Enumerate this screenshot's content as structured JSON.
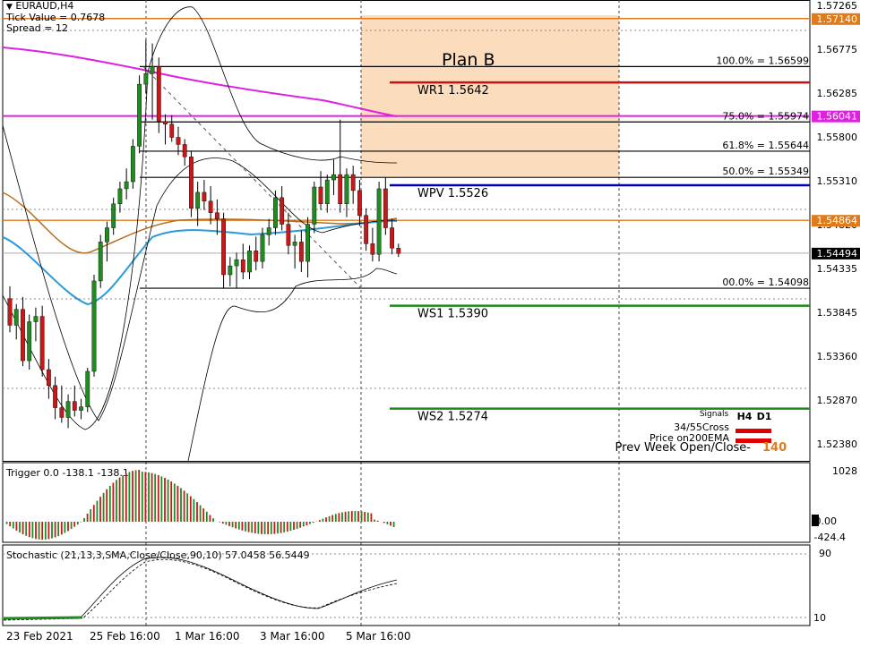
{
  "header": {
    "symbol": "EURAUD,H4",
    "tick_value": "Tick Value = 0.7678",
    "spread": "Spread = 12"
  },
  "colors": {
    "bull": "#1e8c1e",
    "bear": "#c81818",
    "level_orange": "#e07a1a",
    "ma_magenta": "#e020e0",
    "ma_blue": "#2a9ad8",
    "ma_brown": "#b86d20",
    "resistance": "#cc1010",
    "pivot": "#0000b0",
    "support": "#1a8a1a",
    "zone": "#fbdcbc"
  },
  "price_axis": {
    "min": 1.5215,
    "max": 1.5735,
    "ticks": [
      "1.57265",
      "1.56775",
      "1.56285",
      "1.55800",
      "1.55310",
      "1.54820",
      "1.54335",
      "1.53845",
      "1.53360",
      "1.52870",
      "1.52380"
    ],
    "tags": [
      {
        "price": 1.5714,
        "label": "1.57140",
        "color": "#e07a1a"
      },
      {
        "price": 1.56041,
        "label": "1.56041",
        "color": "#e020e0"
      },
      {
        "price": 1.54864,
        "label": "1.54864",
        "color": "#e07a1a"
      },
      {
        "price": 1.54494,
        "label": "1.54494",
        "color": "#000000"
      }
    ]
  },
  "time_axis": [
    "23 Feb 2021",
    "25 Feb 16:00",
    "1 Mar 16:00",
    "3 Mar 16:00",
    "5 Mar 16:00"
  ],
  "zone_label": "Plan B",
  "fib_levels": [
    {
      "label": "100.0% = 1.56599",
      "price": 1.56599
    },
    {
      "label": "75.0% = 1.55974",
      "price": 1.55974
    },
    {
      "label": "61.8% = 1.55644",
      "price": 1.55644
    },
    {
      "label": "50.0% = 1.55349",
      "price": 1.55349
    },
    {
      "label": "00.0% = 1.54098",
      "price": 1.54098
    }
  ],
  "pivot_levels": [
    {
      "name": "WR1",
      "value": "1.5642",
      "type": "resistance",
      "price": 1.5642
    },
    {
      "name": "WPV",
      "value": "1.5526",
      "type": "pivot",
      "price": 1.5526
    },
    {
      "name": "WS1",
      "value": "1.5390",
      "type": "support",
      "price": 1.539
    },
    {
      "name": "WS2",
      "value": "1.5274",
      "type": "support",
      "price": 1.5274
    }
  ],
  "signals": {
    "title": "Signals",
    "timeframes": [
      "H4",
      "D1"
    ],
    "rows": [
      "34/55Cross",
      "Price on200EMA"
    ],
    "prev_week_label": "Prev Week Open/Close-",
    "prev_week_value": "-140"
  },
  "trigger": {
    "label": "Trigger 0.0 -138.1 -138.1",
    "ticks": [
      "1028",
      "0.00",
      "-424.4"
    ]
  },
  "stochastic": {
    "label": "Stochastic (21,13,3,SMA,Close/Close,90,10) 57.0458 56.5449",
    "ticks": [
      "90",
      "10"
    ]
  },
  "chart_data": {
    "type": "candlestick",
    "symbol": "EURAUD",
    "timeframe": "H4",
    "ylim": [
      1.5215,
      1.5735
    ],
    "candles": [
      {
        "o": 1.5398,
        "h": 1.5412,
        "l": 1.536,
        "c": 1.5368
      },
      {
        "o": 1.5368,
        "h": 1.5392,
        "l": 1.5352,
        "c": 1.5386
      },
      {
        "o": 1.5386,
        "h": 1.54,
        "l": 1.5322,
        "c": 1.5328
      },
      {
        "o": 1.5328,
        "h": 1.538,
        "l": 1.5318,
        "c": 1.5372
      },
      {
        "o": 1.5372,
        "h": 1.5388,
        "l": 1.535,
        "c": 1.5378
      },
      {
        "o": 1.5378,
        "h": 1.539,
        "l": 1.531,
        "c": 1.5318
      },
      {
        "o": 1.5318,
        "h": 1.533,
        "l": 1.5285,
        "c": 1.53
      },
      {
        "o": 1.53,
        "h": 1.531,
        "l": 1.5262,
        "c": 1.5275
      },
      {
        "o": 1.5275,
        "h": 1.53,
        "l": 1.5258,
        "c": 1.5264
      },
      {
        "o": 1.5264,
        "h": 1.529,
        "l": 1.5252,
        "c": 1.5282
      },
      {
        "o": 1.5282,
        "h": 1.53,
        "l": 1.5265,
        "c": 1.5272
      },
      {
        "o": 1.5272,
        "h": 1.5285,
        "l": 1.5262,
        "c": 1.5276
      },
      {
        "o": 1.5276,
        "h": 1.532,
        "l": 1.527,
        "c": 1.5316
      },
      {
        "o": 1.5316,
        "h": 1.5425,
        "l": 1.531,
        "c": 1.5418
      },
      {
        "o": 1.5418,
        "h": 1.547,
        "l": 1.541,
        "c": 1.5462
      },
      {
        "o": 1.5462,
        "h": 1.5485,
        "l": 1.544,
        "c": 1.5478
      },
      {
        "o": 1.5478,
        "h": 1.5512,
        "l": 1.547,
        "c": 1.5505
      },
      {
        "o": 1.5505,
        "h": 1.553,
        "l": 1.5495,
        "c": 1.5522
      },
      {
        "o": 1.5522,
        "h": 1.5545,
        "l": 1.551,
        "c": 1.553
      },
      {
        "o": 1.553,
        "h": 1.5578,
        "l": 1.5522,
        "c": 1.557
      },
      {
        "o": 1.557,
        "h": 1.565,
        "l": 1.5562,
        "c": 1.564
      },
      {
        "o": 1.564,
        "h": 1.569,
        "l": 1.563,
        "c": 1.5652
      },
      {
        "o": 1.5652,
        "h": 1.5686,
        "l": 1.56,
        "c": 1.566
      },
      {
        "o": 1.566,
        "h": 1.567,
        "l": 1.5585,
        "c": 1.5598
      },
      {
        "o": 1.5598,
        "h": 1.5606,
        "l": 1.5572,
        "c": 1.5595
      },
      {
        "o": 1.5595,
        "h": 1.5605,
        "l": 1.5575,
        "c": 1.558
      },
      {
        "o": 1.558,
        "h": 1.5592,
        "l": 1.556,
        "c": 1.5572
      },
      {
        "o": 1.5572,
        "h": 1.5578,
        "l": 1.5548,
        "c": 1.5558
      },
      {
        "o": 1.5558,
        "h": 1.5565,
        "l": 1.549,
        "c": 1.55
      },
      {
        "o": 1.55,
        "h": 1.553,
        "l": 1.548,
        "c": 1.5518
      },
      {
        "o": 1.5518,
        "h": 1.5532,
        "l": 1.5498,
        "c": 1.5508
      },
      {
        "o": 1.5508,
        "h": 1.5525,
        "l": 1.5482,
        "c": 1.5495
      },
      {
        "o": 1.5495,
        "h": 1.551,
        "l": 1.547,
        "c": 1.5488
      },
      {
        "o": 1.5488,
        "h": 1.5495,
        "l": 1.541,
        "c": 1.5425
      },
      {
        "o": 1.5425,
        "h": 1.5445,
        "l": 1.5412,
        "c": 1.5435
      },
      {
        "o": 1.5435,
        "h": 1.545,
        "l": 1.541,
        "c": 1.5442
      },
      {
        "o": 1.5442,
        "h": 1.546,
        "l": 1.542,
        "c": 1.5428
      },
      {
        "o": 1.5428,
        "h": 1.5458,
        "l": 1.542,
        "c": 1.5452
      },
      {
        "o": 1.5452,
        "h": 1.5468,
        "l": 1.543,
        "c": 1.544
      },
      {
        "o": 1.544,
        "h": 1.5478,
        "l": 1.5432,
        "c": 1.547
      },
      {
        "o": 1.547,
        "h": 1.5488,
        "l": 1.5458,
        "c": 1.5478
      },
      {
        "o": 1.5478,
        "h": 1.552,
        "l": 1.547,
        "c": 1.5512
      },
      {
        "o": 1.5512,
        "h": 1.5525,
        "l": 1.5475,
        "c": 1.5482
      },
      {
        "o": 1.5482,
        "h": 1.5495,
        "l": 1.5448,
        "c": 1.5458
      },
      {
        "o": 1.5458,
        "h": 1.547,
        "l": 1.5432,
        "c": 1.5462
      },
      {
        "o": 1.5462,
        "h": 1.5475,
        "l": 1.5428,
        "c": 1.544
      },
      {
        "o": 1.544,
        "h": 1.549,
        "l": 1.5422,
        "c": 1.5482
      },
      {
        "o": 1.5482,
        "h": 1.553,
        "l": 1.5472,
        "c": 1.5524
      },
      {
        "o": 1.5524,
        "h": 1.5542,
        "l": 1.5498,
        "c": 1.5505
      },
      {
        "o": 1.5505,
        "h": 1.5538,
        "l": 1.5495,
        "c": 1.5532
      },
      {
        "o": 1.5532,
        "h": 1.5555,
        "l": 1.5515,
        "c": 1.5538
      },
      {
        "o": 1.5538,
        "h": 1.56,
        "l": 1.5495,
        "c": 1.5505
      },
      {
        "o": 1.5505,
        "h": 1.5545,
        "l": 1.549,
        "c": 1.5538
      },
      {
        "o": 1.5538,
        "h": 1.5548,
        "l": 1.5505,
        "c": 1.552
      },
      {
        "o": 1.552,
        "h": 1.5532,
        "l": 1.548,
        "c": 1.5492
      },
      {
        "o": 1.5492,
        "h": 1.55,
        "l": 1.5452,
        "c": 1.546
      },
      {
        "o": 1.546,
        "h": 1.5478,
        "l": 1.544,
        "c": 1.5448
      },
      {
        "o": 1.5448,
        "h": 1.553,
        "l": 1.544,
        "c": 1.5522
      },
      {
        "o": 1.5522,
        "h": 1.5535,
        "l": 1.547,
        "c": 1.5478
      },
      {
        "o": 1.5478,
        "h": 1.5488,
        "l": 1.5448,
        "c": 1.5455
      },
      {
        "o": 1.5455,
        "h": 1.546,
        "l": 1.5445,
        "c": 1.5449
      }
    ]
  }
}
